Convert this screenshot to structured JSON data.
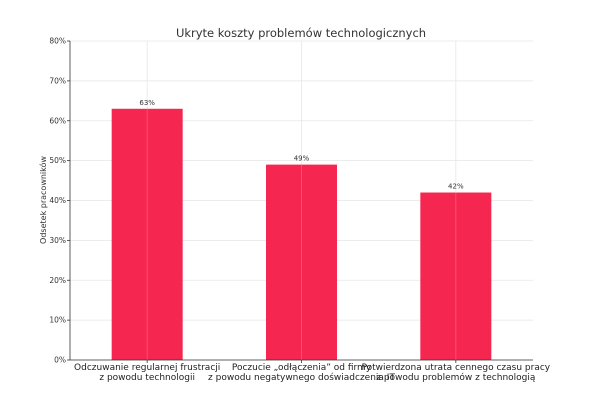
{
  "chart_data": {
    "type": "bar",
    "title": "Ukryte koszty problemów technologicznych",
    "xlabel": "",
    "ylabel": "Odsetek pracowników",
    "categories": [
      [
        "Odczuwanie regularnej frustracji",
        "z powodu technologii"
      ],
      [
        "Poczucie „odłączenia” od firmy",
        "z powodu negatywnego doświadczenia IT"
      ],
      [
        "Potwierdzona utrata cennego czasu pracy",
        "z powodu problemów z technologią"
      ]
    ],
    "values": [
      63,
      49,
      42
    ],
    "data_labels": [
      "63%",
      "49%",
      "42%"
    ],
    "ylim": [
      0,
      80
    ],
    "yticks": [
      "0%",
      "10%",
      "20%",
      "30%",
      "40%",
      "50%",
      "60%",
      "70%",
      "80%"
    ],
    "grid": true,
    "colors": {
      "bar": "#f5264f"
    }
  }
}
